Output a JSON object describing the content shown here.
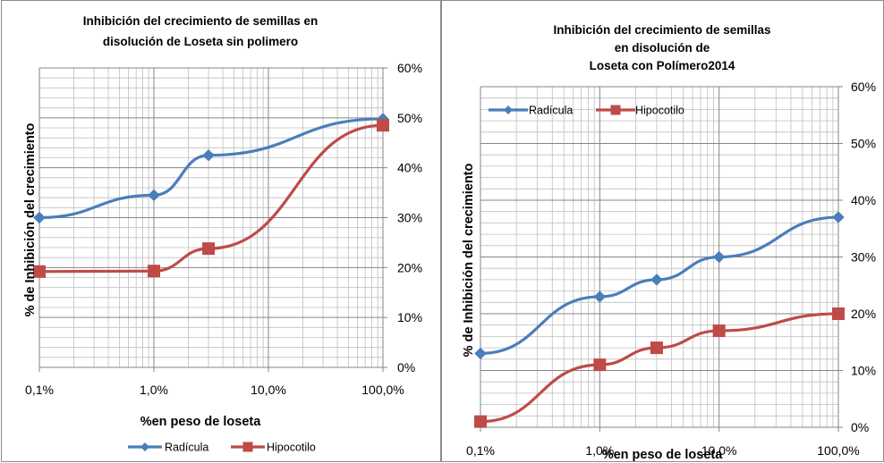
{
  "chart_data": [
    {
      "type": "line",
      "title_lines": [
        "Inhibición del crecimiento de semillas en",
        "disolución de Loseta sin polimero"
      ],
      "xlabel": "%en peso de loseta",
      "ylabel": "% de Inhibición del crecimiento",
      "x_scale": "log",
      "x_ticks": [
        0.1,
        1,
        10,
        100
      ],
      "x_tick_labels": [
        "0,1%",
        "1,0%",
        "10,0%",
        "100,0%"
      ],
      "y_axis_side": "right",
      "ylim": [
        0,
        60
      ],
      "y_ticks": [
        0,
        10,
        20,
        30,
        40,
        50,
        60
      ],
      "y_tick_labels": [
        "0%",
        "10%",
        "20%",
        "30%",
        "40%",
        "50%",
        "60%"
      ],
      "grid": true,
      "legend_position": "bottom",
      "series": [
        {
          "name": "Radícula",
          "color": "#4a7ebb",
          "marker": "diamond",
          "x": [
            0.1,
            1,
            3,
            100
          ],
          "y": [
            30,
            34.5,
            42.5,
            49.8
          ]
        },
        {
          "name": "Hipocotilo",
          "color": "#be4b48",
          "marker": "square",
          "x": [
            0.1,
            1,
            3,
            100
          ],
          "y": [
            19.2,
            19.3,
            23.8,
            48.5
          ]
        }
      ]
    },
    {
      "type": "line",
      "title_lines": [
        "Inhibición del crecimiento de semillas",
        "en disolución de",
        "Loseta con Polímero2014"
      ],
      "xlabel": "%en peso de loseta",
      "ylabel": "% de Inhibición del crecimiento",
      "x_scale": "log",
      "x_ticks": [
        0.1,
        1,
        10,
        100
      ],
      "x_tick_labels": [
        "0,1%",
        "1,0%",
        "10,0%",
        "100,0%"
      ],
      "y_axis_side": "right",
      "ylim": [
        0,
        60
      ],
      "y_ticks": [
        0,
        10,
        20,
        30,
        40,
        50,
        60
      ],
      "y_tick_labels": [
        "0%",
        "10%",
        "20%",
        "30%",
        "40%",
        "50%",
        "60%"
      ],
      "grid": true,
      "legend_position": "top-left",
      "series": [
        {
          "name": "Radícula",
          "color": "#4a7ebb",
          "marker": "diamond",
          "x": [
            0.1,
            1,
            3,
            10,
            100
          ],
          "y": [
            13,
            23,
            26,
            30,
            37
          ]
        },
        {
          "name": "Hipocotilo",
          "color": "#be4b48",
          "marker": "square",
          "x": [
            0.1,
            1,
            3,
            10,
            100
          ],
          "y": [
            1,
            11,
            14,
            17,
            20
          ]
        }
      ]
    }
  ]
}
